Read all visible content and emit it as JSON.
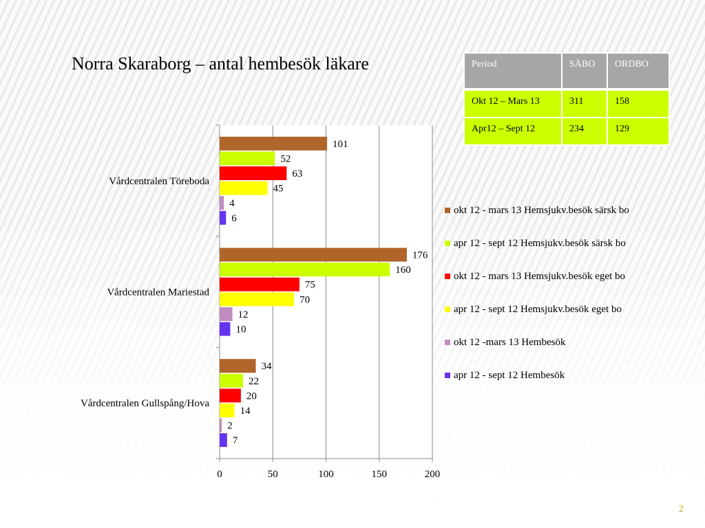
{
  "slide": {
    "title": "Norra Skaraborg – antal hembesök läkare",
    "page_number": "2"
  },
  "table": {
    "headers": [
      "Period",
      "SÄBO",
      "ORDBO"
    ],
    "rows": [
      [
        "Okt 12 – Mars 13",
        "311",
        "158"
      ],
      [
        "Apr12 – Sept 12",
        "234",
        "129"
      ]
    ],
    "header_color": "#a6a6a6",
    "row_color": "#ccff00"
  },
  "chart_data": {
    "type": "bar",
    "orientation": "horizontal",
    "categories": [
      "Vårdcentralen Töreboda",
      "Vårdcentralen Mariestad",
      "Vårdcentralen Gullspång/Hova"
    ],
    "series": [
      {
        "name": "okt 12 - mars 13 Hemsjukv.besök särsk bo",
        "color": "#b0652a",
        "values": [
          101,
          176,
          34
        ]
      },
      {
        "name": "apr 12 - sept 12 Hemsjukv.besök särsk bo",
        "color": "#ccff00",
        "values": [
          52,
          160,
          22
        ]
      },
      {
        "name": "okt 12 - mars 13 Hemsjukv.besök eget bo",
        "color": "#ff0000",
        "values": [
          63,
          75,
          20
        ]
      },
      {
        "name": "apr 12 - sept 12 Hemsjukv.besök eget bo",
        "color": "#ffff00",
        "values": [
          45,
          70,
          14
        ]
      },
      {
        "name": "okt 12 -mars 13 Hembesök",
        "color": "#c08cc0",
        "values": [
          4,
          12,
          2
        ]
      },
      {
        "name": "apr 12 - sept 12 Hembesök",
        "color": "#6633ee",
        "values": [
          6,
          10,
          7
        ]
      }
    ],
    "xlim": [
      0,
      200
    ],
    "xticks": [
      "0",
      "50",
      "100",
      "150",
      "200"
    ],
    "grid": true,
    "legend_position": "right",
    "data_labels": true
  }
}
